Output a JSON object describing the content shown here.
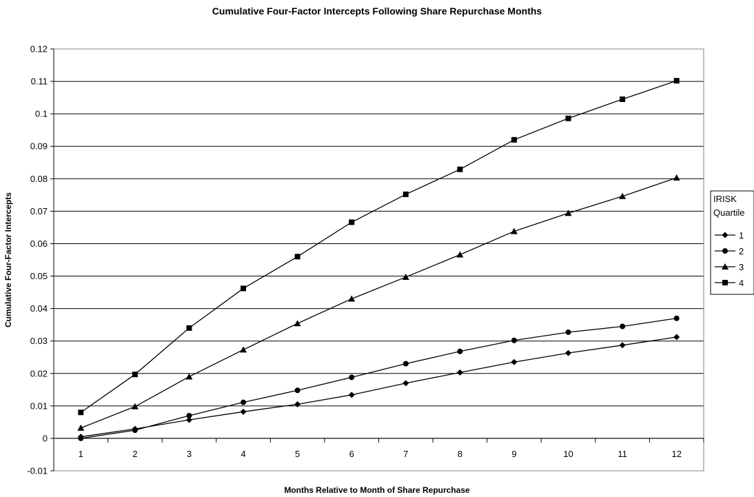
{
  "chart_data": {
    "type": "line",
    "title": "Cumulative Four-Factor Intercepts Following Share Repurchase Months",
    "xlabel": "Months Relative to Month of Share Repurchase",
    "ylabel": "Cumulative Four-Factor Intercepts",
    "categories": [
      "1",
      "2",
      "3",
      "4",
      "5",
      "6",
      "7",
      "8",
      "9",
      "10",
      "11",
      "12"
    ],
    "ylim": [
      -0.01,
      0.12
    ],
    "yticks": [
      "-0.01",
      "0",
      "0.01",
      "0.02",
      "0.03",
      "0.04",
      "0.05",
      "0.06",
      "0.07",
      "0.08",
      "0.09",
      "0.1",
      "0.11",
      "0.12"
    ],
    "ytick_values": [
      -0.01,
      0,
      0.01,
      0.02,
      0.03,
      0.04,
      0.05,
      0.06,
      0.07,
      0.08,
      0.09,
      0.1,
      0.11,
      0.12
    ],
    "grid": "horizontal",
    "legend_title": [
      "IRISK",
      "Quartile"
    ],
    "legend_position": "right",
    "series": [
      {
        "name": "1",
        "marker": "diamond",
        "values": [
          0.0005,
          0.0029,
          0.0057,
          0.0082,
          0.0105,
          0.0134,
          0.017,
          0.0203,
          0.0235,
          0.0263,
          0.0287,
          0.0312
        ]
      },
      {
        "name": "2",
        "marker": "circle",
        "values": [
          0.0,
          0.0025,
          0.007,
          0.0111,
          0.0148,
          0.0188,
          0.023,
          0.0268,
          0.0302,
          0.0327,
          0.0345,
          0.037
        ]
      },
      {
        "name": "3",
        "marker": "triangle",
        "values": [
          0.0032,
          0.0098,
          0.019,
          0.0273,
          0.0354,
          0.043,
          0.0497,
          0.0566,
          0.0638,
          0.0694,
          0.0746,
          0.0803
        ]
      },
      {
        "name": "4",
        "marker": "square",
        "values": [
          0.008,
          0.0197,
          0.034,
          0.0462,
          0.056,
          0.0666,
          0.0752,
          0.0829,
          0.092,
          0.0986,
          0.1045,
          0.1102
        ]
      }
    ]
  }
}
